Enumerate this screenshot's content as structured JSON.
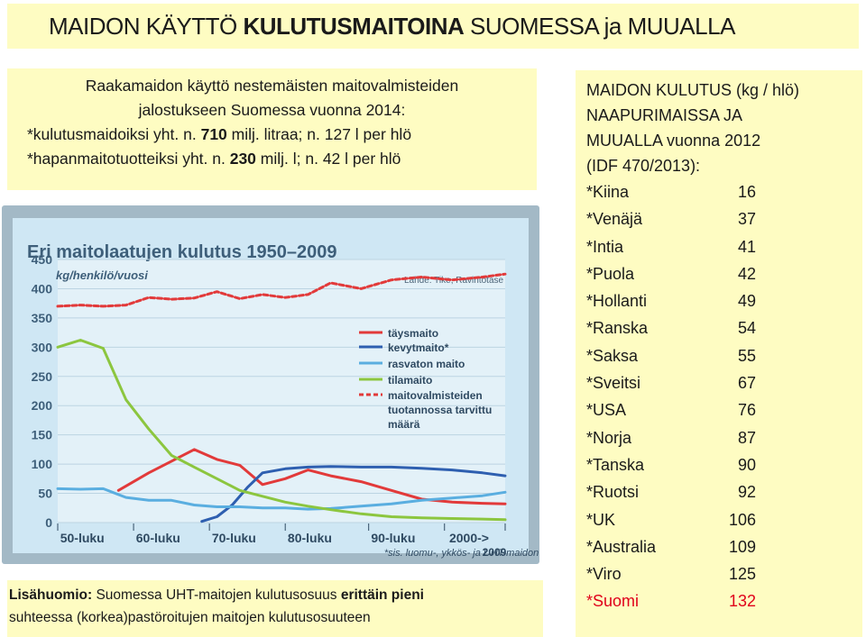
{
  "header": {
    "title_pre": "MAIDON KÄYTTÖ ",
    "title_bold": "KULUTUSMAITOINA",
    "title_post": " SUOMESSA ja MUUALLA"
  },
  "left_note": {
    "line1": "Raakamaidon käyttö nestemäisten maitovalmisteiden",
    "line2": "jalostukseen Suomessa vuonna 2014:",
    "line3_pre": "*kulutusmaidoiksi yht. n. ",
    "line3_bold": "710",
    "line3_post": " milj. litraa; n. 127 l per hlö",
    "line4_pre": "*hapanmaitotuotteiksi yht. n. ",
    "line4_bold": "230",
    "line4_post": " milj. l; n. 42 l per hlö"
  },
  "right_panel": {
    "heading1": "MAIDON KULUTUS (kg / hlö)",
    "heading2": "NAAPURIMAISSA JA",
    "heading3": "MUUALLA vuonna 2012",
    "heading4": "(IDF 470/2013):",
    "countries": [
      {
        "name": "*Kiina",
        "value": "16"
      },
      {
        "name": "*Venäjä",
        "value": "37"
      },
      {
        "name": "*Intia",
        "value": "41"
      },
      {
        "name": "*Puola",
        "value": "42"
      },
      {
        "name": "*Hollanti",
        "value": "49"
      },
      {
        "name": "*Ranska",
        "value": "54"
      },
      {
        "name": "*Saksa",
        "value": "55"
      },
      {
        "name": "*Sveitsi",
        "value": "67"
      },
      {
        "name": "*USA",
        "value": "76"
      },
      {
        "name": "*Norja",
        "value": "87"
      },
      {
        "name": "*Tanska",
        "value": "90"
      },
      {
        "name": "*Ruotsi",
        "value": "92"
      },
      {
        "name": "*UK",
        "value": "106"
      },
      {
        "name": "*Australia",
        "value": "109"
      },
      {
        "name": "*Viro",
        "value": "125"
      },
      {
        "name": "*Suomi",
        "value": "132"
      }
    ],
    "highlight_color": "#e0001a"
  },
  "bottom_note": {
    "bold1": "Lisähuomio:",
    "text1": " Suomessa UHT-maitojen kulutusosuus ",
    "bold2": "erittäin pieni",
    "line2": "suhteessa (korkea)pastöroitujen maitojen kulutusosuuteen"
  },
  "chart_data": {
    "type": "line",
    "title": "Eri maitolaatujen kulutus 1950–2009",
    "ylabel": "kg/henkilö/vuosi",
    "source": "Lähde: Tike, Ravintotase",
    "footnote": "*sis. luomu-, ykkös- ja UHT-maidon",
    "ylim": [
      0,
      450
    ],
    "yticks": [
      "0",
      "50",
      "100",
      "150",
      "200",
      "250",
      "300",
      "350",
      "400",
      "450"
    ],
    "xlim": [
      1950,
      2009
    ],
    "xticks": [
      {
        "label": "50-luku",
        "x": 1953
      },
      {
        "label": "60-luku",
        "x": 1963
      },
      {
        "label": "70-luku",
        "x": 1973
      },
      {
        "label": "80-luku",
        "x": 1983
      },
      {
        "label": "90-luku",
        "x": 1994
      },
      {
        "label": "2000->",
        "x": 2004
      }
    ],
    "xend_label": "2009",
    "series": [
      {
        "name": "täysmaito",
        "color": "#e23a3a",
        "style": "solid",
        "x": [
          1958,
          1962,
          1965,
          1968,
          1971,
          1974,
          1977,
          1980,
          1983,
          1986,
          1990,
          1994,
          1998,
          2002,
          2006,
          2009
        ],
        "y": [
          55,
          85,
          105,
          125,
          108,
          98,
          65,
          75,
          90,
          80,
          70,
          55,
          40,
          35,
          33,
          32
        ]
      },
      {
        "name": "kevytmaito*",
        "color": "#2e5fb0",
        "style": "solid",
        "x": [
          1969,
          1971,
          1973,
          1975,
          1977,
          1980,
          1983,
          1986,
          1990,
          1994,
          1998,
          2002,
          2006,
          2009
        ],
        "y": [
          2,
          10,
          30,
          60,
          85,
          92,
          95,
          96,
          95,
          95,
          93,
          90,
          85,
          80
        ]
      },
      {
        "name": "rasvaton maito",
        "color": "#5aaee0",
        "style": "solid",
        "x": [
          1950,
          1953,
          1956,
          1959,
          1962,
          1965,
          1968,
          1971,
          1974,
          1977,
          1980,
          1983,
          1986,
          1990,
          1994,
          1998,
          2002,
          2006,
          2009
        ],
        "y": [
          58,
          57,
          58,
          43,
          38,
          38,
          30,
          27,
          27,
          25,
          25,
          23,
          24,
          28,
          32,
          38,
          42,
          46,
          52
        ]
      },
      {
        "name": "tilamaito",
        "color": "#8cc63f",
        "style": "solid",
        "x": [
          1950,
          1953,
          1956,
          1959,
          1962,
          1965,
          1968,
          1971,
          1974,
          1977,
          1980,
          1983,
          1986,
          1990,
          1994,
          1998,
          2002,
          2006,
          2009
        ],
        "y": [
          300,
          312,
          298,
          210,
          160,
          115,
          95,
          75,
          55,
          45,
          35,
          28,
          22,
          15,
          10,
          8,
          7,
          6,
          5
        ]
      },
      {
        "name": "maitovalmisteiden tuotannossa tarvittu määrä",
        "color": "#e23a3a",
        "style": "dashed",
        "x": [
          1950,
          1953,
          1956,
          1959,
          1962,
          1965,
          1968,
          1971,
          1974,
          1977,
          1980,
          1983,
          1986,
          1990,
          1994,
          1998,
          2002,
          2006,
          2009
        ],
        "y": [
          370,
          372,
          370,
          372,
          385,
          382,
          384,
          395,
          383,
          390,
          385,
          390,
          410,
          400,
          415,
          420,
          415,
          420,
          425
        ]
      }
    ],
    "colors": {
      "background": "#cfe7f4",
      "frame": "#a3b9c6",
      "plot_bg": "#f4f9fc",
      "grid": "#bcd4e2",
      "title": "#3e5f7a",
      "axis_text": "#3e5f7a"
    },
    "grid": true,
    "legend_position": "right"
  }
}
